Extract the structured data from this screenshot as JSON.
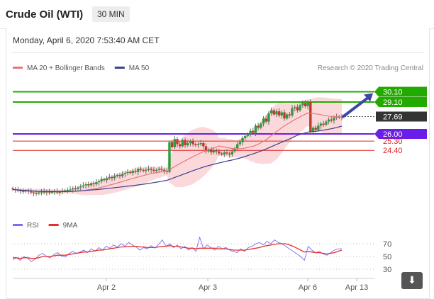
{
  "header": {
    "title": "Crude Oil (WTI)",
    "timeframe": "30 MIN"
  },
  "datetime": "Monday, April 6, 2020 7:53:40 AM CET",
  "credit": "Research © 2020 Trading Central",
  "legend_main": [
    {
      "label": "MA 20 + Bollinger Bands",
      "color": "#e8757a"
    },
    {
      "label": "MA 50",
      "color": "#3d3f8f"
    }
  ],
  "legend_rsi": [
    {
      "label": "RSI",
      "color": "#7b6cf0"
    },
    {
      "label": "9MA",
      "color": "#e53030"
    }
  ],
  "icons": {
    "download": "download-icon"
  },
  "chart_data": [
    {
      "type": "candlestick",
      "x_ticks": [
        "Apr 2",
        "Apr 3",
        "Apr 6",
        "Apr 13"
      ],
      "price_levels": [
        {
          "value": 30.1,
          "label": "30.10",
          "kind": "resistance",
          "color": "#22aa00"
        },
        {
          "value": 29.1,
          "label": "29.10",
          "kind": "resistance",
          "color": "#22aa00"
        },
        {
          "value": 27.69,
          "label": "27.69",
          "kind": "last",
          "color": "#333333"
        },
        {
          "value": 26.0,
          "label": "26.00",
          "kind": "pivot",
          "color": "#6a1ee8"
        },
        {
          "value": 25.3,
          "label": "25.30",
          "kind": "support",
          "color": "#e02020"
        },
        {
          "value": 24.4,
          "label": "24.40",
          "kind": "support",
          "color": "#e02020"
        }
      ],
      "close_series": [
        20.6,
        20.55,
        20.5,
        20.45,
        20.4,
        20.5,
        20.4,
        20.3,
        20.25,
        20.2,
        20.3,
        20.4,
        20.3,
        20.4,
        20.3,
        20.35,
        20.4,
        20.3,
        20.35,
        20.45,
        20.5,
        20.55,
        20.6,
        20.7,
        20.65,
        20.8,
        20.9,
        21.0,
        21.1,
        21.0,
        21.2,
        21.1,
        21.3,
        21.4,
        21.6,
        21.5,
        21.7,
        21.8,
        21.7,
        21.9,
        22.0,
        21.9,
        22.1,
        22.2,
        22.3,
        22.2,
        22.4,
        22.3,
        22.6,
        22.5,
        22.4,
        22.5,
        22.6,
        22.5,
        22.4,
        22.5,
        22.6,
        22.5,
        22.4,
        22.3,
        25.2,
        24.7,
        25.5,
        25.0,
        24.8,
        25.4,
        24.9,
        25.1,
        25.3,
        25.0,
        24.9,
        25.0,
        25.1,
        24.8,
        24.3,
        24.5,
        24.2,
        24.4,
        24.3,
        24.1,
        24.0,
        24.2,
        24.1,
        24.0,
        24.3,
        24.6,
        25.0,
        25.2,
        25.6,
        25.8,
        26.0,
        26.3,
        26.1,
        26.8,
        26.6,
        27.0,
        27.5,
        27.2,
        28.0,
        28.3,
        27.9,
        28.2,
        27.8,
        28.1,
        27.5,
        27.9,
        27.8,
        28.5,
        28.6,
        28.3,
        28.8,
        29.0,
        28.7,
        29.1,
        26.2,
        26.6,
        26.4,
        26.8,
        27.0,
        26.9,
        27.2,
        27.4,
        27.3,
        27.6,
        27.7,
        27.6,
        27.69
      ],
      "forecast_arrow": {
        "from": 27.69,
        "to": 30.1
      },
      "ma20_bollinger": {
        "color": "#e8757a"
      },
      "ma50": {
        "color": "#3d3f8f"
      }
    },
    {
      "type": "line",
      "name": "RSI panel",
      "y_ticks": [
        70,
        50,
        30
      ],
      "series": [
        {
          "name": "RSI",
          "values": [
            45,
            48,
            44,
            50,
            47,
            42,
            46,
            52,
            55,
            50,
            48,
            53,
            56,
            51,
            49,
            54,
            58,
            55,
            57,
            60,
            56,
            62,
            58,
            64,
            60,
            66,
            63,
            68,
            65,
            70,
            66,
            72,
            68,
            65,
            60,
            64,
            62,
            67,
            63,
            69,
            76,
            66,
            70,
            64,
            68,
            62,
            66,
            60,
            64,
            58,
            80,
            62,
            68,
            64,
            60,
            66,
            62,
            64,
            60,
            58,
            56,
            62,
            58,
            64,
            66,
            70,
            72,
            68,
            74,
            70,
            76,
            72,
            70,
            66,
            62,
            58,
            54,
            50,
            44,
            66,
            60,
            56,
            58,
            54,
            52,
            56,
            60,
            62,
            62
          ]
        },
        {
          "name": "9MA",
          "values": [
            48,
            48,
            47,
            48,
            48,
            47,
            47,
            48,
            50,
            50,
            50,
            51,
            52,
            52,
            52,
            53,
            54,
            55,
            56,
            57,
            57,
            58,
            59,
            60,
            60,
            61,
            62,
            63,
            64,
            65,
            65,
            66,
            66,
            66,
            65,
            65,
            64,
            64,
            64,
            65,
            66,
            66,
            67,
            66,
            66,
            65,
            64,
            63,
            63,
            62,
            63,
            63,
            63,
            63,
            63,
            62,
            62,
            62,
            61,
            60,
            60,
            60,
            60,
            61,
            62,
            63,
            64,
            66,
            67,
            68,
            69,
            70,
            70,
            70,
            68,
            66,
            63,
            60,
            57,
            58,
            57,
            56,
            56,
            55,
            54,
            55,
            56,
            58,
            60
          ]
        }
      ]
    }
  ]
}
